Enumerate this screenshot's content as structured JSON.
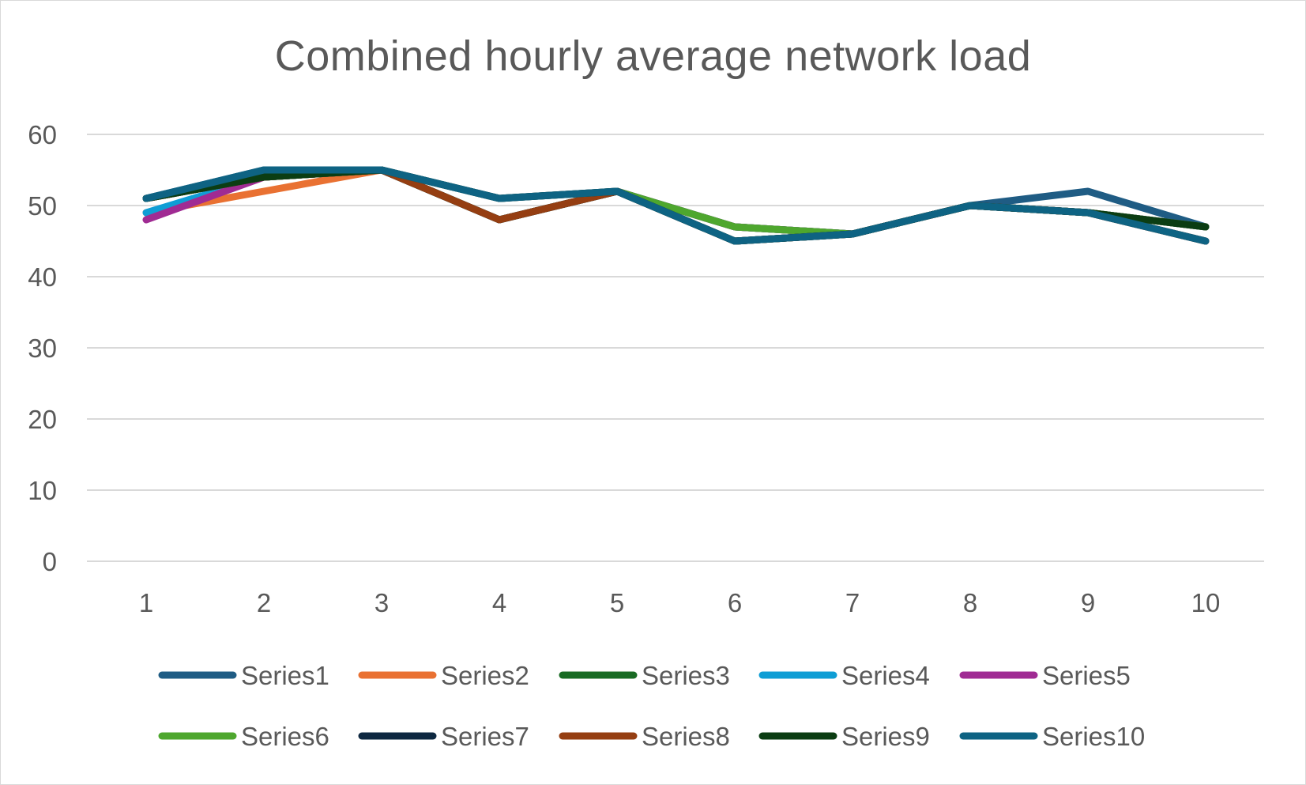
{
  "chart_data": {
    "type": "line",
    "title": "Combined hourly average network load",
    "xlabel": "",
    "ylabel": "",
    "x": [
      "1",
      "2",
      "3",
      "4",
      "5",
      "6",
      "7",
      "8",
      "9",
      "10"
    ],
    "y_ticks": [
      "0",
      "10",
      "20",
      "30",
      "40",
      "50",
      "60"
    ],
    "ylim": [
      0,
      60
    ],
    "grid": "horizontal",
    "legend_position": "bottom",
    "series": [
      {
        "name": "Series1",
        "color": "#1F5C84",
        "values": [
          51,
          55,
          55,
          51,
          52,
          45,
          46,
          50,
          52,
          47
        ]
      },
      {
        "name": "Series2",
        "color": "#E97132",
        "values": [
          49,
          52,
          55,
          48,
          52,
          47,
          46,
          50,
          49,
          47
        ]
      },
      {
        "name": "Series3",
        "color": "#196B24",
        "values": [
          51,
          54,
          55,
          48,
          52,
          47,
          46,
          50,
          49,
          47
        ]
      },
      {
        "name": "Series4",
        "color": "#0F9ED5",
        "values": [
          49,
          54,
          55,
          48,
          52,
          47,
          46,
          50,
          49,
          47
        ]
      },
      {
        "name": "Series5",
        "color": "#A02B93",
        "values": [
          48,
          54,
          55,
          48,
          52,
          47,
          46,
          50,
          49,
          47
        ]
      },
      {
        "name": "Series6",
        "color": "#4EA72E",
        "values": [
          51,
          54,
          55,
          48,
          52,
          47,
          46,
          50,
          49,
          47
        ]
      },
      {
        "name": "Series7",
        "color": "#0E2841",
        "values": [
          51,
          54,
          55,
          48,
          52,
          45,
          46,
          50,
          49,
          45
        ]
      },
      {
        "name": "Series8",
        "color": "#953E12",
        "values": [
          51,
          54,
          55,
          48,
          52,
          45,
          46,
          50,
          49,
          45
        ]
      },
      {
        "name": "Series9",
        "color": "#0B3D13",
        "values": [
          51,
          54,
          55,
          51,
          52,
          45,
          46,
          50,
          49,
          47
        ]
      },
      {
        "name": "Series10",
        "color": "#0E6383",
        "values": [
          51,
          55,
          55,
          51,
          52,
          45,
          46,
          50,
          49,
          45
        ]
      }
    ]
  }
}
